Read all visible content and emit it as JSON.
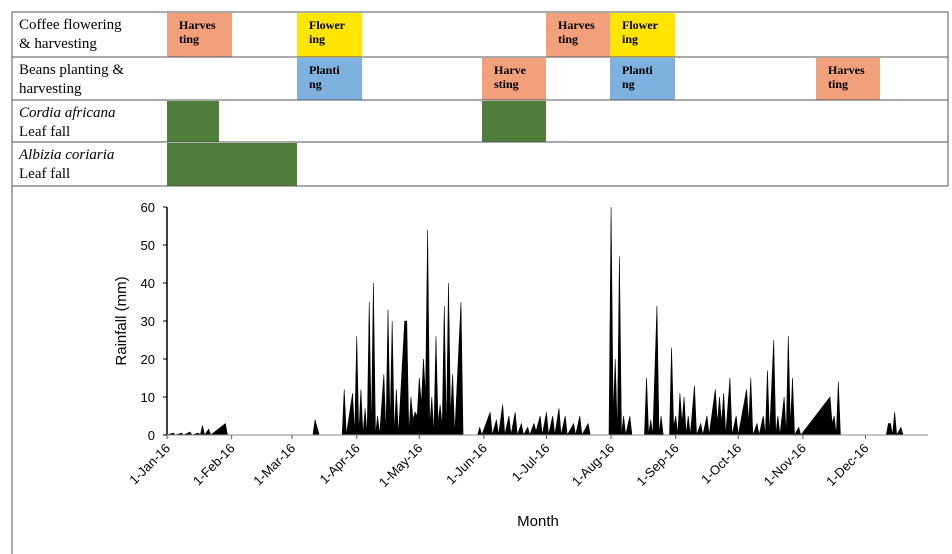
{
  "table": {
    "rows": [
      {
        "label": [
          "Coffee flowering",
          "& harvesting"
        ],
        "blocks": [
          {
            "text": [
              "Harves",
              "ting"
            ],
            "color": "#f2a07c"
          },
          {
            "text": [
              "Flower",
              "ing"
            ],
            "color": "#ffe500"
          },
          {
            "text": [
              "Harves",
              "ting"
            ],
            "color": "#f2a07c"
          },
          {
            "text": [
              "Flower",
              "ing"
            ],
            "color": "#ffe500"
          }
        ]
      },
      {
        "label": [
          "Beans planting &",
          "harvesting"
        ],
        "blocks": [
          {
            "text": [
              "Planti",
              "ng"
            ],
            "color": "#7fb1de"
          },
          {
            "text": [
              "Harve",
              "sting"
            ],
            "color": "#f2a07c"
          },
          {
            "text": [
              "Planti",
              "ng"
            ],
            "color": "#7fb1de"
          },
          {
            "text": [
              "Harves",
              "ting"
            ],
            "color": "#f2a07c"
          }
        ]
      },
      {
        "label": [
          "Cordia africana",
          "Leaf fall"
        ],
        "blocks": [
          {
            "color": "#4f7e3a"
          },
          {
            "color": "#4f7e3a"
          }
        ]
      },
      {
        "label": [
          "Albizia coriaria",
          "Leaf fall"
        ],
        "blocks": [
          {
            "color": "#4f7e3a"
          }
        ]
      }
    ]
  },
  "chart_data": {
    "type": "area",
    "xlabel": "Month",
    "ylabel": "Rainfall (mm)",
    "color": "#000000",
    "ylim": [
      0,
      60
    ],
    "yticks": [
      0,
      10,
      20,
      30,
      40,
      50,
      60
    ],
    "xticks": [
      "1-Jan-16",
      "1-Feb-16",
      "1-Mar-16",
      "1-Apr-16",
      "1-May-16",
      "1-Jun-16",
      "1-Jul-16",
      "1-Aug-16",
      "1-Sep-16",
      "1-Oct-16",
      "1-Nov-16",
      "1-Dec-16"
    ],
    "xlim": [
      "1-Jan-16",
      "31-Dec-16"
    ],
    "x": [
      "1-Jan-16",
      "4-Jan-16",
      "5-Jan-16",
      "8-Jan-16",
      "9-Jan-16",
      "12-Jan-16",
      "13-Jan-16",
      "16-Jan-16",
      "17-Jan-16",
      "18-Jan-16",
      "19-Jan-16",
      "21-Jan-16",
      "22-Jan-16",
      "29-Jan-16",
      "30-Jan-16",
      "11-Mar-16",
      "12-Mar-16",
      "14-Mar-16",
      "25-Mar-16",
      "26-Mar-16",
      "27-Mar-16",
      "30-Mar-16",
      "31-Mar-16",
      "1-Apr-16",
      "2-Apr-16",
      "3-Apr-16",
      "4-Apr-16",
      "5-Apr-16",
      "6-Apr-16",
      "7-Apr-16",
      "8-Apr-16",
      "9-Apr-16",
      "10-Apr-16",
      "11-Apr-16",
      "12-Apr-16",
      "14-Apr-16",
      "15-Apr-16",
      "16-Apr-16",
      "17-Apr-16",
      "18-Apr-16",
      "19-Apr-16",
      "20-Apr-16",
      "21-Apr-16",
      "24-Apr-16",
      "25-Apr-16",
      "26-Apr-16",
      "27-Apr-16",
      "28-Apr-16",
      "29-Apr-16",
      "30-Apr-16",
      "1-May-16",
      "2-May-16",
      "3-May-16",
      "4-May-16",
      "5-May-16",
      "6-May-16",
      "7-May-16",
      "8-May-16",
      "9-May-16",
      "10-May-16",
      "11-May-16",
      "12-May-16",
      "13-May-16",
      "14-May-16",
      "15-May-16",
      "16-May-16",
      "17-May-16",
      "18-May-16",
      "21-May-16",
      "22-May-16",
      "29-May-16",
      "30-May-16",
      "31-May-16",
      "4-Jun-16",
      "5-Jun-16",
      "7-Jun-16",
      "8-Jun-16",
      "10-Jun-16",
      "11-Jun-16",
      "13-Jun-16",
      "14-Jun-16",
      "16-Jun-16",
      "17-Jun-16",
      "19-Jun-16",
      "20-Jun-16",
      "22-Jun-16",
      "23-Jun-16",
      "25-Jun-16",
      "26-Jun-16",
      "28-Jun-16",
      "29-Jun-16",
      "1-Jul-16",
      "2-Jul-16",
      "4-Jul-16",
      "5-Jul-16",
      "7-Jul-16",
      "8-Jul-16",
      "10-Jul-16",
      "11-Jul-16",
      "14-Jul-16",
      "15-Jul-16",
      "17-Jul-16",
      "18-Jul-16",
      "21-Jul-16",
      "22-Jul-16",
      "31-Jul-16",
      "1-Aug-16",
      "2-Aug-16",
      "3-Aug-16",
      "4-Aug-16",
      "5-Aug-16",
      "6-Aug-16",
      "7-Aug-16",
      "8-Aug-16",
      "10-Aug-16",
      "11-Aug-16",
      "17-Aug-16",
      "18-Aug-16",
      "19-Aug-16",
      "20-Aug-16",
      "21-Aug-16",
      "23-Aug-16",
      "24-Aug-16",
      "25-Aug-16",
      "26-Aug-16",
      "29-Aug-16",
      "30-Aug-16",
      "31-Aug-16",
      "1-Sep-16",
      "2-Sep-16",
      "3-Sep-16",
      "4-Sep-16",
      "5-Sep-16",
      "6-Sep-16",
      "7-Sep-16",
      "8-Sep-16",
      "10-Sep-16",
      "11-Sep-16",
      "13-Sep-16",
      "14-Sep-16",
      "16-Sep-16",
      "17-Sep-16",
      "20-Sep-16",
      "21-Sep-16",
      "22-Sep-16",
      "23-Sep-16",
      "24-Sep-16",
      "25-Sep-16",
      "27-Sep-16",
      "28-Sep-16",
      "30-Sep-16",
      "1-Oct-16",
      "5-Oct-16",
      "6-Oct-16",
      "7-Oct-16",
      "8-Oct-16",
      "10-Oct-16",
      "11-Oct-16",
      "13-Oct-16",
      "14-Oct-16",
      "15-Oct-16",
      "16-Oct-16",
      "18-Oct-16",
      "19-Oct-16",
      "20-Oct-16",
      "21-Oct-16",
      "23-Oct-16",
      "24-Oct-16",
      "25-Oct-16",
      "26-Oct-16",
      "27-Oct-16",
      "28-Oct-16",
      "30-Oct-16",
      "31-Oct-16",
      "14-Nov-16",
      "15-Nov-16",
      "16-Nov-16",
      "17-Nov-16",
      "18-Nov-16",
      "19-Nov-16",
      "11-Dec-16",
      "12-Dec-16",
      "13-Dec-16",
      "14-Dec-16",
      "15-Dec-16",
      "16-Dec-16",
      "18-Dec-16",
      "19-Dec-16",
      "31-Dec-16"
    ],
    "values": [
      0,
      0.5,
      0,
      0.5,
      0,
      0.8,
      0,
      0.5,
      0,
      2.5,
      0,
      1.5,
      0,
      3,
      0,
      0,
      4,
      0,
      0,
      12,
      0,
      11,
      0,
      26,
      0,
      12,
      0,
      7,
      0,
      35,
      0,
      40,
      0,
      5,
      0,
      16,
      0,
      33,
      2,
      30,
      0,
      12,
      0,
      30,
      30,
      0,
      10,
      4,
      6,
      5,
      15,
      8,
      20,
      10,
      54,
      2,
      10,
      0,
      26,
      3,
      8,
      2,
      34,
      0,
      40,
      5,
      16,
      0,
      35,
      0,
      0,
      2,
      0,
      6,
      0,
      4,
      0,
      8,
      0,
      5,
      0,
      6,
      0,
      3,
      0,
      2,
      0,
      3,
      1,
      5,
      0,
      6,
      0,
      5,
      0,
      7,
      0,
      5,
      0,
      3,
      0,
      5,
      0,
      3,
      0,
      0,
      60,
      5,
      20,
      0,
      47,
      0,
      5,
      0,
      5,
      0,
      0,
      15,
      0,
      4,
      0,
      34,
      0,
      5,
      0,
      0,
      23,
      2,
      5,
      0,
      11,
      3,
      10,
      0,
      5,
      0,
      13,
      0,
      3,
      0,
      5,
      0,
      12,
      3,
      10,
      3,
      11,
      0,
      15,
      0,
      5,
      0,
      12,
      3,
      15,
      0,
      3,
      0,
      5,
      0,
      17,
      0,
      25,
      0,
      5,
      0,
      10,
      0,
      26,
      2,
      15,
      0,
      2,
      0,
      10,
      3,
      5,
      0,
      14,
      0,
      0,
      3,
      3,
      0,
      6,
      0,
      2,
      0,
      0
    ]
  }
}
